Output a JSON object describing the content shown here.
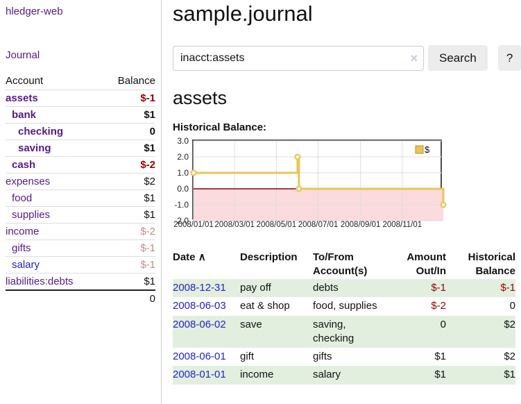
{
  "colors": {
    "link_purple": "#551a8b",
    "link_blue": "#2222cc",
    "negative_strong": "#990000",
    "negative_pale": "#c98888",
    "row_stripe_green": "#e2efdf",
    "chart_line_gold": "#e9c556",
    "chart_negative_region": "#fbdbde",
    "chart_zero_line": "#8b0000"
  },
  "sidebar": {
    "app_title": "hledger-web",
    "journal_link": "Journal",
    "accounts": {
      "header_account": "Account",
      "header_balance": "Balance",
      "rows": [
        {
          "name": "assets",
          "balance": "$-1",
          "depth": 1,
          "bold": true,
          "link": "purple",
          "bal_class": "neg"
        },
        {
          "name": "bank",
          "balance": "$1",
          "depth": 2,
          "bold": true,
          "link": "purple",
          "bal_class": "pos"
        },
        {
          "name": "checking",
          "balance": "0",
          "depth": 3,
          "bold": true,
          "link": "purple",
          "bal_class": "pos"
        },
        {
          "name": "saving",
          "balance": "$1",
          "depth": 3,
          "bold": true,
          "link": "purple",
          "bal_class": "pos"
        },
        {
          "name": "cash",
          "balance": "$-2",
          "depth": 2,
          "bold": true,
          "link": "purple",
          "bal_class": "neg"
        },
        {
          "name": "expenses",
          "balance": "$2",
          "depth": 1,
          "bold": false,
          "link": "purple",
          "bal_class": "pos"
        },
        {
          "name": "food",
          "balance": "$1",
          "depth": 2,
          "bold": false,
          "link": "purple",
          "bal_class": "pos"
        },
        {
          "name": "supplies",
          "balance": "$1",
          "depth": 2,
          "bold": false,
          "link": "purple",
          "bal_class": "pos"
        },
        {
          "name": "income",
          "balance": "$-2",
          "depth": 1,
          "bold": false,
          "link": "purple",
          "bal_class": "negpale"
        },
        {
          "name": "gifts",
          "balance": "$-1",
          "depth": 2,
          "bold": false,
          "link": "purple",
          "bal_class": "negpale"
        },
        {
          "name": "salary",
          "balance": "$-1",
          "depth": 2,
          "bold": false,
          "link": "blue",
          "bal_class": "negpale"
        },
        {
          "name": "liabilities:debts",
          "balance": "$1",
          "depth": 1,
          "bold": false,
          "link": "purple",
          "bal_class": "pos"
        }
      ],
      "total": "0"
    }
  },
  "main": {
    "title": "sample.journal",
    "search": {
      "value": "inacct:assets",
      "clear_icon": "×",
      "search_button": "Search",
      "help_button": "?"
    },
    "account_heading": "assets",
    "chart_heading": "Historical Balance:",
    "register": {
      "headers": {
        "date": "Date",
        "sort_indicator": "∧",
        "description": "Description",
        "accounts": "To/From\nAccount(s)",
        "amount": "Amount\nOut/In",
        "balance": "Historical\nBalance"
      },
      "rows": [
        {
          "date": "2008-12-31",
          "description": "pay off",
          "accounts": "debts",
          "amount": "$-1",
          "amount_class": "neg",
          "balance": "$-1",
          "balance_class": "neg"
        },
        {
          "date": "2008-06-03",
          "description": "eat & shop",
          "accounts": "food, supplies",
          "amount": "$-2",
          "amount_class": "neg",
          "balance": "0",
          "balance_class": "pos"
        },
        {
          "date": "2008-06-02",
          "description": "save",
          "accounts": "saving,\nchecking",
          "amount": "0",
          "amount_class": "pos",
          "balance": "$2",
          "balance_class": "pos"
        },
        {
          "date": "2008-06-01",
          "description": "gift",
          "accounts": "gifts",
          "amount": "$1",
          "amount_class": "pos",
          "balance": "$2",
          "balance_class": "pos"
        },
        {
          "date": "2008-01-01",
          "description": "income",
          "accounts": "salary",
          "amount": "$1",
          "amount_class": "pos",
          "balance": "$1",
          "balance_class": "pos"
        }
      ]
    }
  },
  "chart_data": {
    "type": "line",
    "title": "Historical Balance",
    "style": "step",
    "series": [
      {
        "name": "$",
        "color": "#e9c556",
        "points": [
          {
            "date": "2008-01-01",
            "value": 1
          },
          {
            "date": "2008-06-01",
            "value": 2
          },
          {
            "date": "2008-06-03",
            "value": 0
          },
          {
            "date": "2008-12-31",
            "value": -1
          }
        ]
      }
    ],
    "x_range": [
      "2008-01-01",
      "2008-12-31"
    ],
    "ylim": [
      -2,
      3
    ],
    "y_ticks": [
      3.0,
      2.0,
      1.0,
      0.0,
      -1.0,
      -2.0
    ],
    "x_ticks": [
      "2008/01/01",
      "2008/03/01",
      "2008/05/01",
      "2008/07/01",
      "2008/09/01",
      "2008/11/01"
    ],
    "grid": true,
    "legend_position": "top-right",
    "negative_region_color": "#fbdbde",
    "zero_line_color": "#8b0000"
  }
}
